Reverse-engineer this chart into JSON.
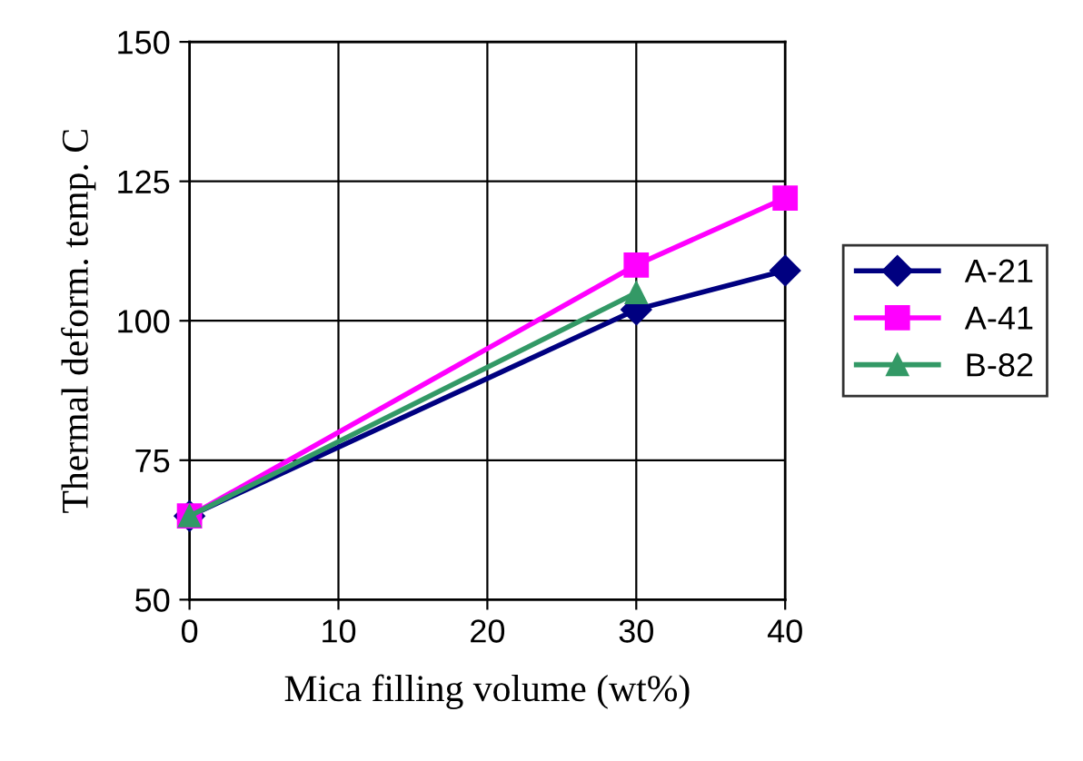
{
  "chart_data": {
    "type": "line",
    "xlabel": "Mica filling volume (wt%)",
    "ylabel": "Thermal deform. temp. C",
    "xlim": [
      0,
      40
    ],
    "ylim": [
      50,
      150
    ],
    "xticks": [
      0,
      10,
      20,
      30,
      40
    ],
    "yticks": [
      50,
      75,
      100,
      125,
      150
    ],
    "grid": true,
    "legend": "right",
    "line_style": "solid",
    "series": [
      {
        "name": "A-21",
        "color": "#000080",
        "marker": "diamond",
        "x": [
          0,
          30,
          40
        ],
        "values": [
          65,
          102,
          109
        ]
      },
      {
        "name": "A-41",
        "color": "#ff00ff",
        "marker": "square",
        "x": [
          0,
          30,
          40
        ],
        "values": [
          65,
          110,
          122
        ]
      },
      {
        "name": "B-82",
        "color": "#339966",
        "marker": "triangle",
        "x": [
          0,
          30
        ],
        "values": [
          65,
          105
        ]
      }
    ]
  }
}
